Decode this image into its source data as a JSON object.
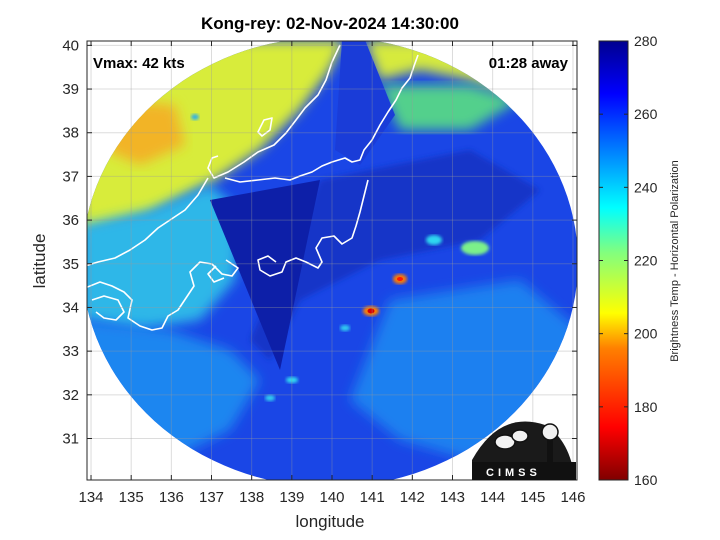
{
  "chart_data": {
    "type": "heatmap",
    "title": "Kong-rey: 02-Nov-2024 14:30:00",
    "xlabel": "longitude",
    "ylabel": "latitude",
    "xlim": [
      133.9,
      146.1
    ],
    "ylim": [
      30.05,
      40.1
    ],
    "xticks": [
      "134",
      "135",
      "136",
      "137",
      "138",
      "139",
      "140",
      "141",
      "142",
      "143",
      "144",
      "145",
      "146"
    ],
    "yticks": [
      "31",
      "32",
      "33",
      "34",
      "35",
      "36",
      "37",
      "38",
      "39",
      "40"
    ],
    "grid": true,
    "annotations": {
      "vmax": "Vmax: 42 kts",
      "time_away": "01:28 away"
    },
    "colorbar": {
      "label": "Brightness Temp - Horizontal Polarization",
      "range": [
        160,
        280
      ],
      "ticks": [
        "160",
        "180",
        "200",
        "220",
        "240",
        "260",
        "280"
      ],
      "colormap": "jet"
    },
    "swath_center": [
      139.9,
      35.25
    ],
    "feature_values": [
      {
        "name": "background",
        "value": 260
      },
      {
        "name": "northwest_land",
        "value": 212
      },
      {
        "name": "north_warm_patch",
        "value": 200
      },
      {
        "name": "west_ocean",
        "value": 235
      },
      {
        "name": "central_band",
        "value": 265
      },
      {
        "name": "dark_wedge",
        "value": 272
      },
      {
        "name": "convective_cell_1",
        "lon": 141.7,
        "lat": 34.6,
        "value": 185
      },
      {
        "name": "convective_cell_2",
        "lon": 140.95,
        "lat": 33.85,
        "value": 178
      },
      {
        "name": "warm_cluster_east",
        "lon": 143.5,
        "lat": 35.3,
        "value": 215
      }
    ],
    "logo": "CIMSS"
  },
  "colors": {
    "background": "#ffffff",
    "axes_edge": "#262626",
    "coastline": "#ffffff",
    "jet_stops": [
      "#800000",
      "#ff0000",
      "#ff8000",
      "#ffff00",
      "#80ff80",
      "#00ffff",
      "#0080ff",
      "#0000ff",
      "#00008f"
    ]
  }
}
